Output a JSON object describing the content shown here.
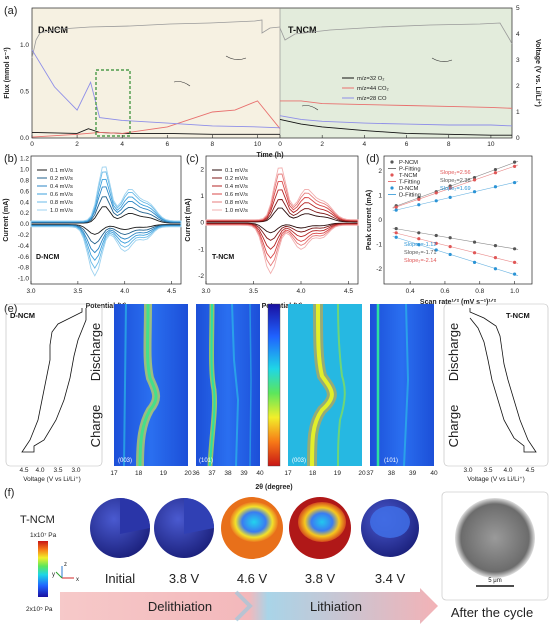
{
  "panels": {
    "a": "(a)",
    "b": "(b)",
    "c": "(c)",
    "d": "(d)",
    "e": "(e)",
    "f": "(f)"
  },
  "panel_a": {
    "left_title": "D-NCM",
    "right_title": "T-NCM",
    "xlabel": "Time (h)",
    "ylabel_left": "Flux (mmol s⁻¹)",
    "ylabel_right": "Voltage (V vs. Li/Li⁺)",
    "left_ticks": [
      "0",
      "2",
      "4",
      "6",
      "8",
      "10"
    ],
    "right_ticks": [
      "0",
      "2",
      "4",
      "6",
      "8",
      "10"
    ],
    "yticks_left": [
      "0.0",
      "0.5",
      "1.0"
    ],
    "yticks_right": [
      "0",
      "1",
      "2",
      "3",
      "4",
      "5"
    ],
    "legend": [
      {
        "name": "m/z=32 O₂",
        "color": "#111111"
      },
      {
        "name": "m/z=44 CO₂",
        "color": "#e8706e"
      },
      {
        "name": "m/z=28 CO",
        "color": "#8e8ee8"
      }
    ],
    "colors": {
      "left_bg": "#f6f1e2",
      "right_bg": "#e3ecdc",
      "box": "#2e8b2e"
    }
  },
  "panel_b": {
    "label": "D-NCM",
    "xlabel": "Potential (V)",
    "ylabel": "Current (mA)",
    "xticks": [
      "3.0",
      "3.5",
      "4.0",
      "4.5"
    ],
    "yticks": [
      "1.2",
      "1.0",
      "0.8",
      "0.6",
      "0.4",
      "0.2",
      "0.0",
      "-0.2",
      "-0.4",
      "-0.6",
      "-0.8",
      "-1.0"
    ],
    "legend": [
      "0.1 mV/s",
      "0.2 mV/s",
      "0.4 mV/s",
      "0.6 mV/s",
      "0.8 mV/s",
      "1.0 mV/s"
    ]
  },
  "panel_c": {
    "label": "T-NCM",
    "xlabel": "Potential (V)",
    "ylabel": "Current (mA)",
    "xticks": [
      "3.0",
      "3.5",
      "4.0",
      "4.5"
    ],
    "yticks": [
      "2",
      "1",
      "0",
      "-1",
      "-2"
    ],
    "legend": [
      "0.1 mV/s",
      "0.2 mV/s",
      "0.4 mV/s",
      "0.6 mV/s",
      "0.8 mV/s",
      "1.0 mV/s"
    ]
  },
  "panel_d": {
    "xlabel": "Scan rate¹ᐟ² (mV s⁻¹)¹ᐟ²",
    "ylabel": "Peak current (mA)",
    "xticks": [
      "0.4",
      "0.6",
      "0.8",
      "1.0"
    ],
    "yticks": [
      "2",
      "1",
      "0",
      "-1",
      "-2"
    ],
    "legend": [
      "P-NCM",
      "P-Fitting",
      "T-NCM",
      "T-Fitting",
      "D-NCM",
      "D-Fitting"
    ],
    "slopes_top": [
      "Slope₂=2.56",
      "Slope₂=2.38",
      "Slope₂=1.69"
    ],
    "slopes_bot": [
      "Slope₂=-1.12",
      "Slope₂=-1.71",
      "Slope₂=-2.14"
    ]
  },
  "panel_e": {
    "left_title": "D-NCM",
    "right_title": "T-NCM",
    "discharge": "Discharge",
    "charge": "Charge",
    "voltage_label_left": "Voltage (V vs Li/Li⁺)",
    "voltage_label_right": "Voltage (V vs Li/Li⁺)",
    "vticks_left": [
      "4.5",
      "4.0",
      "3.5",
      "3.0"
    ],
    "vticks_right": [
      "3.0",
      "3.5",
      "4.0",
      "4.5"
    ],
    "theta_label": "2θ (degree)",
    "theta_ticks_1": [
      "17",
      "18",
      "19",
      "20"
    ],
    "theta_ticks_2": [
      "36",
      "37",
      "38",
      "39",
      "40"
    ],
    "theta_ticks_3": [
      "17",
      "18",
      "19",
      "20"
    ],
    "theta_ticks_4": [
      "37",
      "38",
      "39",
      "40"
    ],
    "peaks": [
      "(003)",
      "(101)",
      "(003)",
      "(101)"
    ]
  },
  "panel_f": {
    "title": "T-NCM",
    "scale_top": "1x10⁷ Pa",
    "scale_bot": "2x10⁵ Pa",
    "states": [
      "Initial",
      "3.8 V",
      "4.6 V",
      "3.8 V",
      "3.4 V"
    ],
    "delith": "Delithiation",
    "lith": "Lithiation",
    "after": "After the cycle",
    "scalebar": "5 μm",
    "axes": [
      "y",
      "z",
      "x"
    ]
  },
  "chart_data": [
    {
      "type": "line",
      "panel": "a",
      "title": "",
      "xlabel": "Time (h)",
      "ylabel": "Flux (mmol s⁻¹)",
      "segments": [
        "D-NCM",
        "T-NCM"
      ],
      "xlim": [
        0,
        11
      ],
      "ylim": [
        0,
        1.4
      ],
      "series": [
        {
          "name": "m/z=32 O₂",
          "segment": "D-NCM",
          "x": [
            0,
            2,
            2.5,
            3,
            4,
            6,
            8,
            10,
            11
          ],
          "y": [
            0.06,
            0.05,
            0.1,
            0.06,
            0.05,
            0.05,
            0.04,
            0.04,
            0.04
          ]
        },
        {
          "name": "m/z=44 CO₂",
          "segment": "D-NCM",
          "x": [
            0,
            2,
            3,
            4,
            6,
            7,
            8,
            9,
            10,
            11
          ],
          "y": [
            0.01,
            0.04,
            0.06,
            0.05,
            0.12,
            0.2,
            0.28,
            0.3,
            0.4,
            0.1
          ]
        },
        {
          "name": "m/z=28 CO",
          "segment": "D-NCM",
          "x": [
            0,
            1,
            2,
            2.6,
            3,
            4,
            6,
            8,
            10,
            11
          ],
          "y": [
            0.95,
            0.55,
            0.3,
            0.6,
            0.22,
            0.19,
            0.16,
            0.13,
            0.12,
            0.11
          ]
        },
        {
          "name": "m/z=32 O₂",
          "segment": "T-NCM",
          "x": [
            0,
            1,
            2,
            4,
            6,
            8,
            10,
            11
          ],
          "y": [
            0.2,
            0.15,
            0.12,
            0.08,
            0.05,
            0.04,
            0.03,
            0.03
          ]
        },
        {
          "name": "m/z=44 CO₂",
          "segment": "T-NCM",
          "x": [
            0,
            1,
            2,
            4,
            6,
            8,
            10,
            11
          ],
          "y": [
            0.4,
            0.4,
            0.37,
            0.36,
            0.35,
            0.34,
            0.33,
            0.32
          ]
        },
        {
          "name": "m/z=28 CO",
          "segment": "T-NCM",
          "x": [
            0,
            1,
            2,
            4,
            6,
            8,
            10,
            11
          ],
          "y": [
            0.24,
            0.2,
            0.18,
            0.16,
            0.15,
            0.14,
            0.14,
            0.13
          ]
        }
      ]
    },
    {
      "type": "line",
      "panel": "b",
      "xlabel": "Potential (V)",
      "ylabel": "Current (mA)",
      "xlim": [
        3.0,
        4.6
      ],
      "ylim": [
        -1.1,
        1.25
      ],
      "series": [
        {
          "name": "0.1 mV/s",
          "peak_ox": 0.35,
          "peak_red": -0.2
        },
        {
          "name": "0.2 mV/s",
          "peak_ox": 0.55,
          "peak_red": -0.38
        },
        {
          "name": "0.4 mV/s",
          "peak_ox": 0.75,
          "peak_red": -0.55
        },
        {
          "name": "0.6 mV/s",
          "peak_ox": 0.9,
          "peak_red": -0.7
        },
        {
          "name": "0.8 mV/s",
          "peak_ox": 1.05,
          "peak_red": -0.85
        },
        {
          "name": "1.0 mV/s",
          "peak_ox": 1.15,
          "peak_red": -1.0
        }
      ]
    },
    {
      "type": "line",
      "panel": "c",
      "xlabel": "Potential (V)",
      "ylabel": "Current (mA)",
      "xlim": [
        3.0,
        4.6
      ],
      "ylim": [
        -2.3,
        2.5
      ],
      "series": [
        {
          "name": "0.1 mV/s",
          "peak_ox": 0.6,
          "peak_red": -0.4
        },
        {
          "name": "0.2 mV/s",
          "peak_ox": 0.95,
          "peak_red": -0.7
        },
        {
          "name": "0.4 mV/s",
          "peak_ox": 1.35,
          "peak_red": -1.05
        },
        {
          "name": "0.6 mV/s",
          "peak_ox": 1.7,
          "peak_red": -1.4
        },
        {
          "name": "0.8 mV/s",
          "peak_ox": 2.0,
          "peak_red": -1.7
        },
        {
          "name": "1.0 mV/s",
          "peak_ox": 2.25,
          "peak_red": -2.0
        }
      ]
    },
    {
      "type": "scatter",
      "panel": "d",
      "xlabel": "Scan rate¹ᐟ² (mV s⁻¹)¹ᐟ²",
      "ylabel": "Peak current (mA)",
      "xlim": [
        0.25,
        1.1
      ],
      "ylim": [
        -2.6,
        2.6
      ],
      "x": [
        0.32,
        0.45,
        0.55,
        0.63,
        0.77,
        0.89,
        1.0
      ],
      "series": [
        {
          "name": "P-NCM",
          "color": "#555555",
          "y": [
            0.58,
            0.9,
            1.15,
            1.38,
            1.72,
            2.05,
            2.35
          ]
        },
        {
          "name": "T-NCM",
          "color": "#e05656",
          "y": [
            0.52,
            0.84,
            1.1,
            1.3,
            1.63,
            1.92,
            2.18
          ]
        },
        {
          "name": "D-NCM",
          "color": "#2a93d5",
          "y": [
            0.4,
            0.62,
            0.78,
            0.92,
            1.15,
            1.35,
            1.52
          ]
        },
        {
          "name": "P-NCM",
          "color": "#555555",
          "y": [
            -0.35,
            -0.52,
            -0.63,
            -0.72,
            -0.9,
            -1.04,
            -1.17
          ]
        },
        {
          "name": "T-NCM",
          "color": "#e05656",
          "y": [
            -0.52,
            -0.76,
            -0.95,
            -1.08,
            -1.33,
            -1.53,
            -1.72
          ]
        },
        {
          "name": "D-NCM",
          "color": "#2a93d5",
          "y": [
            -0.7,
            -1.0,
            -1.22,
            -1.4,
            -1.72,
            -1.98,
            -2.2
          ]
        }
      ]
    }
  ]
}
